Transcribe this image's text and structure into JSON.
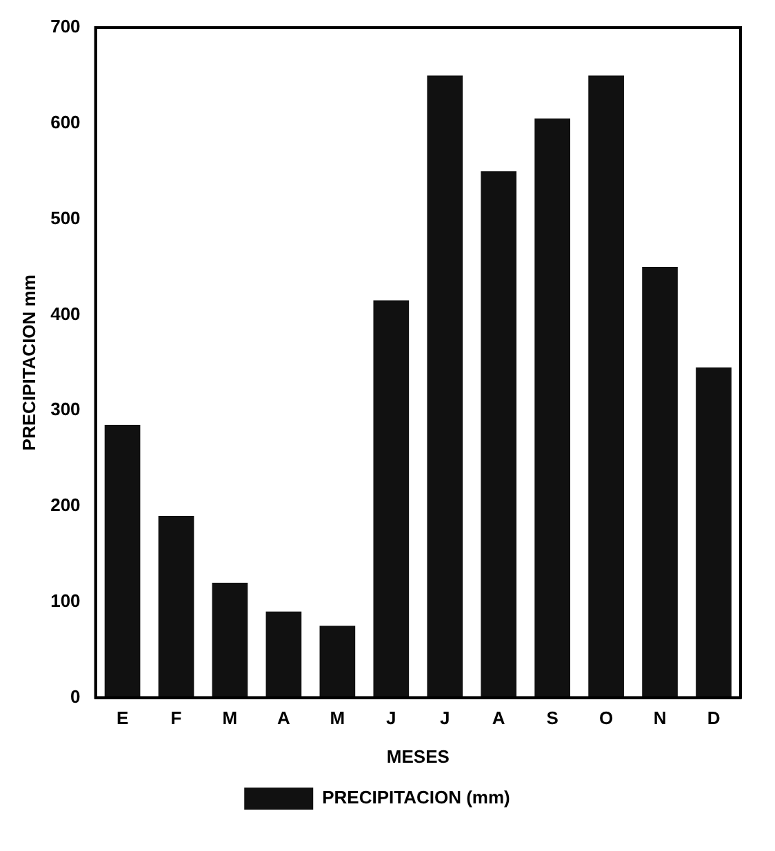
{
  "chart_data": {
    "type": "bar",
    "xlabel": "MESES",
    "ylabel": "PRECIPITACION mm",
    "categories": [
      "E",
      "F",
      "M",
      "A",
      "M",
      "J",
      "J",
      "A",
      "S",
      "O",
      "N",
      "D"
    ],
    "series": [
      {
        "name": "PRECIPITACION (mm)",
        "color": "#111111",
        "values": [
          285,
          190,
          120,
          90,
          75,
          415,
          650,
          550,
          605,
          650,
          450,
          345
        ]
      }
    ],
    "ylim": [
      0,
      700
    ],
    "yticks": [
      0,
      100,
      200,
      300,
      400,
      500,
      600,
      700
    ],
    "grid": false,
    "legend": "bottom"
  }
}
